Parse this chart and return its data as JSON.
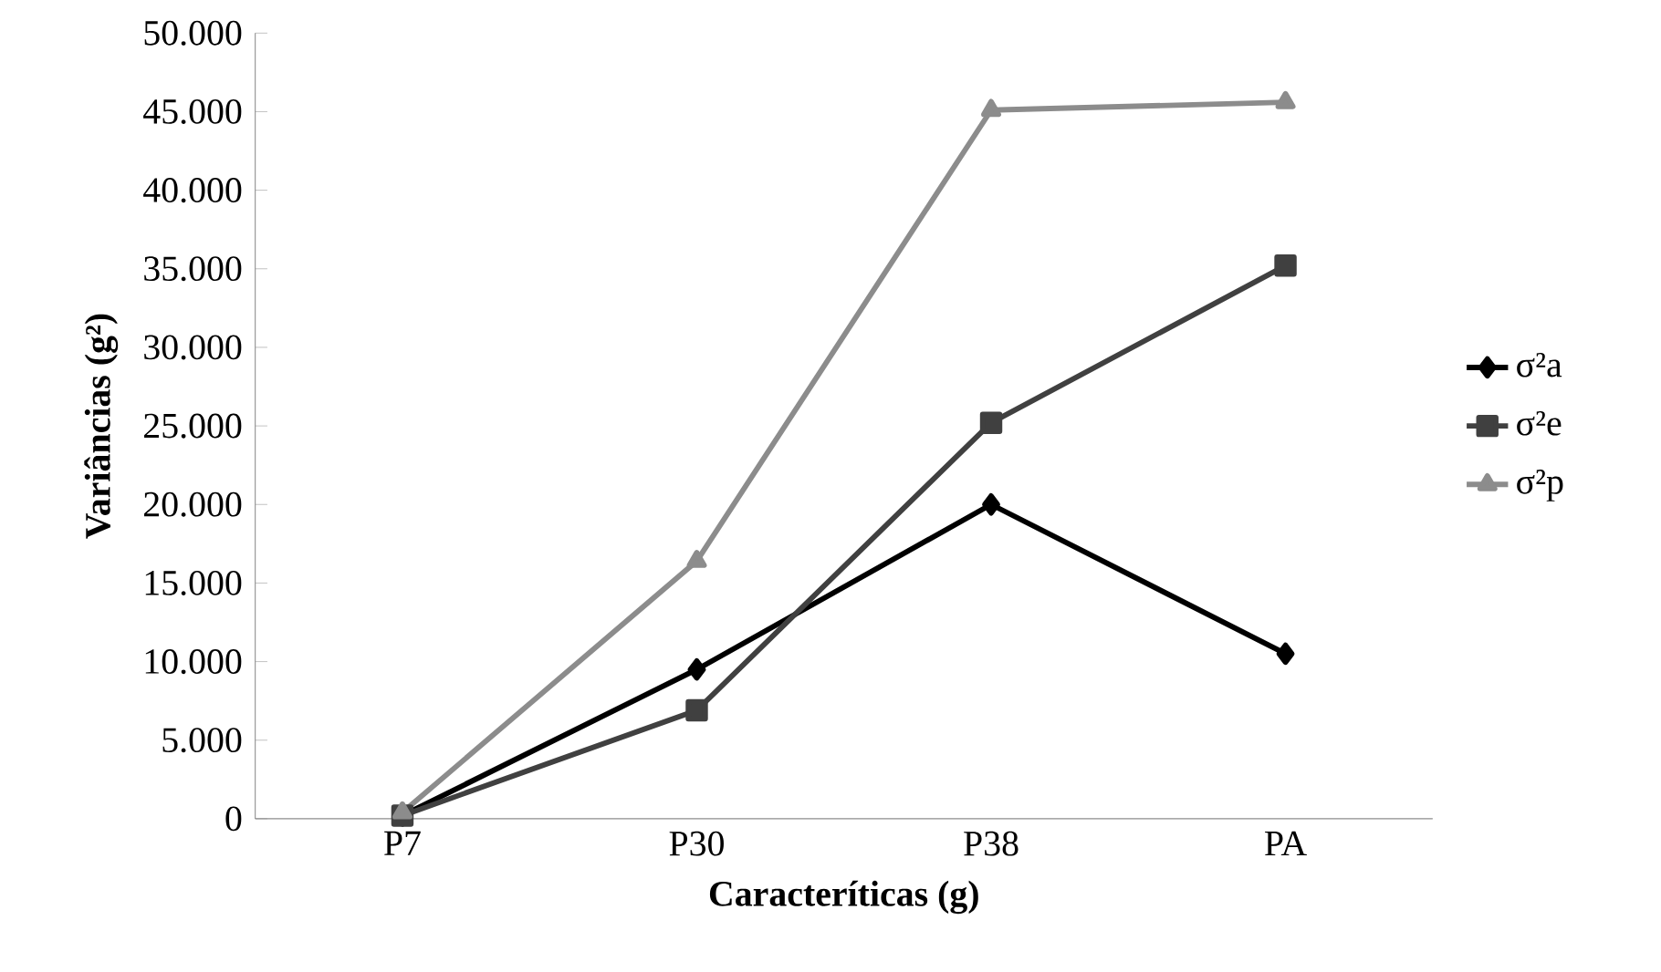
{
  "chart_data": {
    "type": "line",
    "xlabel": "Caracteríticas (g)",
    "ylabel": "Variâncias (g²)",
    "categories": [
      "P7",
      "P30",
      "P38",
      "PA"
    ],
    "series": [
      {
        "name": "σ²a",
        "color": "#000000",
        "marker": "diamond",
        "values": [
          200,
          9500,
          20000,
          10500
        ]
      },
      {
        "name": "σ²e",
        "color": "#404040",
        "marker": "square",
        "values": [
          200,
          6900,
          25200,
          35200
        ]
      },
      {
        "name": "σ²p",
        "color": "#8c8c8c",
        "marker": "triangle",
        "values": [
          400,
          16400,
          45100,
          45600
        ]
      }
    ],
    "ylim": [
      0,
      50000
    ],
    "yticks": [
      0,
      {
        "value": 5000,
        "label": "5.000"
      },
      {
        "value": 10000,
        "label": "10.000"
      },
      {
        "value": 15000,
        "label": "15.000"
      },
      {
        "value": 20000,
        "label": "20.000"
      },
      {
        "value": 25000,
        "label": "25.000"
      },
      {
        "value": 30000,
        "label": "30.000"
      },
      {
        "value": 35000,
        "label": "35.000"
      },
      {
        "value": 40000,
        "label": "40.000"
      },
      {
        "value": 45000,
        "label": "45.000"
      },
      {
        "value": 50000,
        "label": "50.000"
      }
    ],
    "grid": false,
    "legend": "right",
    "line_style": "solid"
  }
}
